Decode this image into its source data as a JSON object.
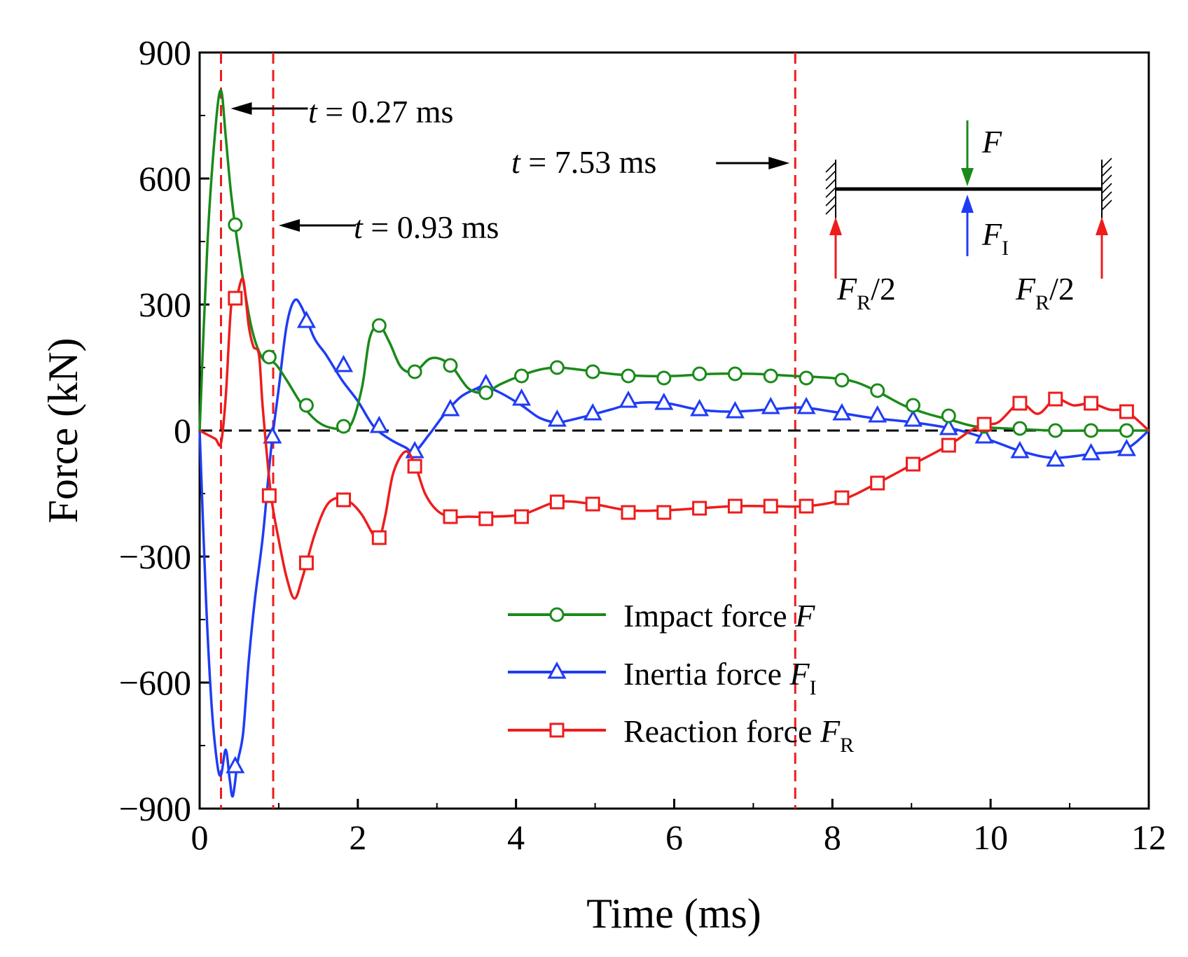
{
  "chart_data": {
    "type": "line",
    "title": "",
    "xlabel": "Time (ms)",
    "ylabel": "Force (kN)",
    "xlim": [
      0,
      12
    ],
    "ylim": [
      -900,
      900
    ],
    "xticks": [
      0,
      2,
      4,
      6,
      8,
      10,
      12
    ],
    "yticks": [
      -900,
      -600,
      -300,
      0,
      300,
      600,
      900
    ],
    "ytick_labels": [
      "−900",
      "−600",
      "−300",
      "0",
      "300",
      "600",
      "900"
    ],
    "zero_line": true,
    "legend_position": "bottom-center",
    "series": [
      {
        "name": "Impact force",
        "symbol": "F",
        "subscript": "",
        "color": "#1a8a1a",
        "marker": "circle",
        "x": [
          0,
          0.1,
          0.2,
          0.27,
          0.33,
          0.4,
          0.5,
          0.65,
          0.8,
          0.95,
          1.1,
          1.3,
          1.5,
          1.7,
          1.9,
          2.05,
          2.15,
          2.27,
          2.4,
          2.55,
          2.72,
          2.9,
          3.05,
          3.2,
          3.4,
          3.6,
          3.8,
          4.05,
          4.3,
          4.52,
          4.8,
          5.2,
          5.6,
          6.0,
          6.5,
          7.0,
          7.5,
          8.0,
          8.3,
          8.6,
          8.9,
          9.2,
          9.5,
          9.8,
          10.2,
          10.8,
          11.3,
          12.0
        ],
        "y": [
          0,
          450,
          720,
          810,
          700,
          560,
          420,
          250,
          170,
          160,
          120,
          60,
          20,
          5,
          10,
          100,
          220,
          250,
          210,
          150,
          140,
          170,
          170,
          150,
          100,
          90,
          110,
          130,
          145,
          150,
          145,
          135,
          130,
          130,
          135,
          135,
          130,
          125,
          115,
          90,
          60,
          40,
          25,
          10,
          5,
          0,
          0,
          0
        ],
        "marker_x": [
          0.45,
          0.88,
          1.35,
          1.82,
          2.27,
          2.72,
          3.17,
          3.62,
          4.07,
          4.52,
          4.97,
          5.42,
          5.87,
          6.32,
          6.77,
          7.22,
          7.67,
          8.12,
          8.57,
          9.02,
          9.47,
          9.92,
          10.37,
          10.82,
          11.27,
          11.72
        ],
        "marker_y": [
          490,
          175,
          60,
          10,
          250,
          140,
          155,
          90,
          130,
          150,
          140,
          130,
          125,
          135,
          135,
          130,
          125,
          120,
          95,
          60,
          35,
          10,
          5,
          0,
          0,
          0
        ]
      },
      {
        "name": "Inertia force",
        "symbol": "F",
        "subscript": "I",
        "color": "#1f3cf5",
        "marker": "triangle",
        "x": [
          0,
          0.08,
          0.15,
          0.22,
          0.27,
          0.33,
          0.38,
          0.42,
          0.48,
          0.55,
          0.62,
          0.7,
          0.8,
          0.9,
          1.0,
          1.1,
          1.2,
          1.3,
          1.45,
          1.6,
          1.8,
          2.0,
          2.2,
          2.4,
          2.6,
          2.72,
          2.9,
          3.1,
          3.3,
          3.5,
          3.6,
          3.8,
          4.07,
          4.3,
          4.52,
          4.8,
          5.2,
          5.5,
          5.9,
          6.3,
          6.7,
          7.2,
          7.6,
          8.0,
          8.5,
          9.0,
          9.5,
          9.8,
          10.1,
          10.4,
          10.8,
          11.3,
          11.7,
          12.0
        ],
        "y": [
          0,
          -400,
          -650,
          -790,
          -820,
          -760,
          -830,
          -870,
          -790,
          -720,
          -550,
          -400,
          -250,
          -50,
          100,
          250,
          310,
          290,
          220,
          180,
          120,
          70,
          10,
          -20,
          -40,
          -50,
          -10,
          40,
          80,
          100,
          105,
          90,
          60,
          30,
          20,
          30,
          50,
          65,
          65,
          50,
          45,
          50,
          55,
          45,
          30,
          20,
          5,
          -10,
          -30,
          -50,
          -65,
          -55,
          -45,
          0
        ],
        "marker_x": [
          0.45,
          0.92,
          1.35,
          1.82,
          2.27,
          2.72,
          3.17,
          3.62,
          4.07,
          4.52,
          4.97,
          5.42,
          5.87,
          6.32,
          6.77,
          7.22,
          7.67,
          8.12,
          8.57,
          9.02,
          9.47,
          9.92,
          10.37,
          10.82,
          11.27,
          11.72
        ],
        "marker_y": [
          -800,
          -15,
          260,
          155,
          10,
          -50,
          50,
          110,
          75,
          25,
          40,
          70,
          65,
          50,
          45,
          55,
          55,
          40,
          35,
          25,
          5,
          -15,
          -50,
          -70,
          -55,
          -45
        ]
      },
      {
        "name": "Reaction force",
        "symbol": "F",
        "subscript": "R",
        "color": "#ee1c1c",
        "marker": "square",
        "x": [
          0,
          0.1,
          0.2,
          0.27,
          0.33,
          0.4,
          0.47,
          0.55,
          0.62,
          0.68,
          0.75,
          0.8,
          0.9,
          1.0,
          1.1,
          1.2,
          1.3,
          1.45,
          1.6,
          1.75,
          1.9,
          2.05,
          2.2,
          2.27,
          2.35,
          2.45,
          2.6,
          2.72,
          2.85,
          3.0,
          3.17,
          3.4,
          3.6,
          4.07,
          4.52,
          4.97,
          5.42,
          5.87,
          6.32,
          6.77,
          7.22,
          7.67,
          8.12,
          8.57,
          9.02,
          9.47,
          9.75,
          9.92,
          10.1,
          10.37,
          10.6,
          10.82,
          11.05,
          11.27,
          11.5,
          11.72,
          12.0
        ],
        "y": [
          0,
          -10,
          -20,
          -30,
          80,
          300,
          320,
          360,
          250,
          200,
          180,
          50,
          -150,
          -260,
          -350,
          -400,
          -350,
          -250,
          -180,
          -160,
          -170,
          -200,
          -250,
          -260,
          -200,
          -100,
          -50,
          -80,
          -150,
          -190,
          -205,
          -205,
          -205,
          -200,
          -170,
          -175,
          -190,
          -190,
          -185,
          -180,
          -180,
          -180,
          -165,
          -125,
          -80,
          -35,
          0,
          15,
          20,
          65,
          40,
          75,
          60,
          65,
          50,
          45,
          0
        ],
        "marker_x": [
          0.45,
          0.88,
          1.35,
          1.82,
          2.27,
          2.72,
          3.17,
          3.62,
          4.07,
          4.52,
          4.97,
          5.42,
          5.87,
          6.32,
          6.77,
          7.22,
          7.67,
          8.12,
          8.57,
          9.02,
          9.47,
          9.92,
          10.37,
          10.82,
          11.27,
          11.72
        ],
        "marker_y": [
          315,
          -155,
          -315,
          -165,
          -255,
          -85,
          -205,
          -210,
          -205,
          -170,
          -175,
          -195,
          -195,
          -185,
          -180,
          -180,
          -180,
          -160,
          -125,
          -80,
          -35,
          15,
          65,
          75,
          65,
          45
        ]
      }
    ],
    "time_markers": [
      {
        "t": 0.27,
        "label_prefix": "t",
        "label_value": " = 0.27 ms",
        "arrow": "left"
      },
      {
        "t": 0.93,
        "label_prefix": "t",
        "label_value": " = 0.93 ms",
        "arrow": "left"
      },
      {
        "t": 7.53,
        "label_prefix": "t",
        "label_value": " = 7.53 ms",
        "arrow": "right"
      }
    ],
    "inset": {
      "impact_label": "F",
      "inertia_label": "F",
      "inertia_sub": "I",
      "reaction_label_left": "F",
      "reaction_sub_left": "R",
      "reaction_tail_left": "/2",
      "reaction_label_right": "F",
      "reaction_sub_right": "R",
      "reaction_tail_right": "/2"
    }
  }
}
